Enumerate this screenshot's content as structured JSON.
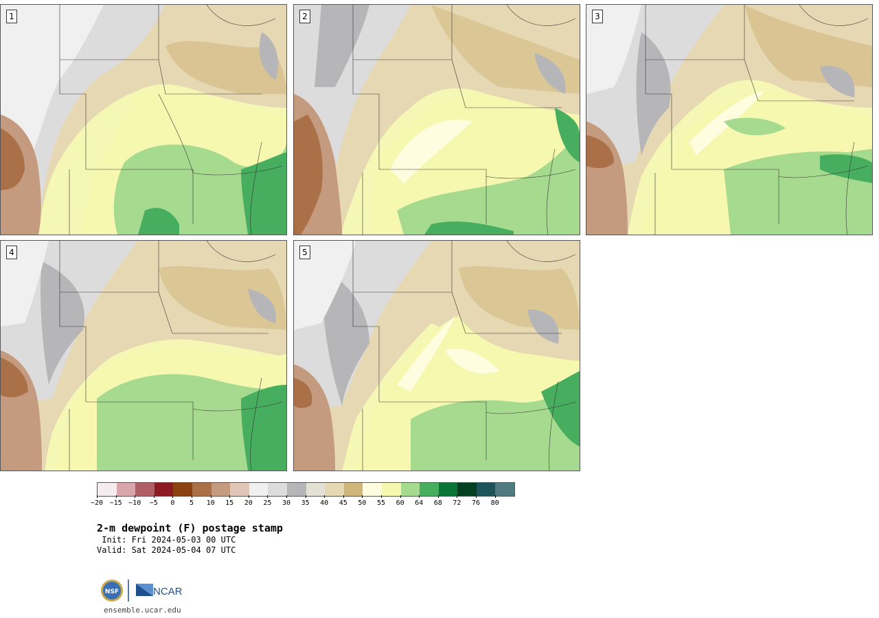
{
  "panels": [
    {
      "label": "1"
    },
    {
      "label": "2"
    },
    {
      "label": "3"
    },
    {
      "label": "4"
    },
    {
      "label": "5"
    }
  ],
  "colorbar": {
    "colors": [
      "#f5ecef",
      "#d9a6ab",
      "#b05f66",
      "#8b1a22",
      "#8a4210",
      "#aa7149",
      "#c59b80",
      "#e0c6b6",
      "#f0f0f0",
      "#dcdcdc",
      "#b6b6b8",
      "#e3e1d3",
      "#e6d8b3",
      "#cfb57a",
      "#fffde0",
      "#f6f8b0",
      "#a6db8f",
      "#46ae5e",
      "#0a7537",
      "#053f22",
      "#1e5459",
      "#4f7a80"
    ],
    "tick_labels": [
      "−20",
      "−15",
      "−10",
      "−5",
      "0",
      "5",
      "10",
      "15",
      "20",
      "25",
      "30",
      "35",
      "40",
      "45",
      "50",
      "55",
      "60",
      "64",
      "68",
      "72",
      "76",
      "80"
    ]
  },
  "title": "2-m dewpoint (F) postage stamp",
  "init": " Init: Fri 2024-05-03 00 UTC",
  "valid": "Valid: Sat 2024-05-04 07 UTC",
  "logo": {
    "left_text": "NSF",
    "right_text": "NCAR"
  },
  "site": "ensemble.ucar.edu"
}
